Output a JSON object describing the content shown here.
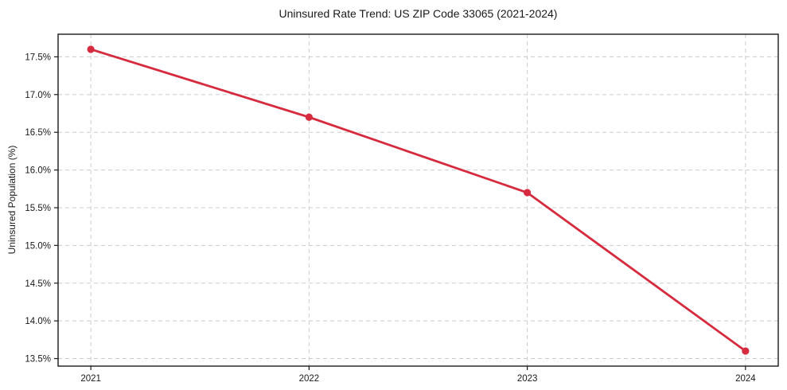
{
  "chart_data": {
    "type": "line",
    "title": "Uninsured Rate Trend: US ZIP Code 33065 (2021-2024)",
    "xlabel": "",
    "ylabel": "Uninsured Population (%)",
    "x": [
      2021,
      2022,
      2023,
      2024
    ],
    "x_tick_labels": [
      "2021",
      "2022",
      "2023",
      "2024"
    ],
    "values": [
      17.6,
      16.7,
      15.7,
      13.6
    ],
    "y_ticks": [
      13.5,
      14.0,
      14.5,
      15.0,
      15.5,
      16.0,
      16.5,
      17.0,
      17.5
    ],
    "y_tick_labels": [
      "13.5%",
      "14.0%",
      "14.5%",
      "15.0%",
      "15.5%",
      "16.0%",
      "16.5%",
      "17.0%",
      "17.5%"
    ],
    "xlim": [
      2020.85,
      2024.15
    ],
    "ylim": [
      13.4,
      17.8
    ],
    "grid": true,
    "legend": "none",
    "colors": {
      "line": "#d62b3e",
      "marker": "#d62b3e",
      "grid": "#cccccc",
      "axis": "#1a1a1a",
      "text": "#1a1a1a",
      "background": "#ffffff"
    }
  }
}
